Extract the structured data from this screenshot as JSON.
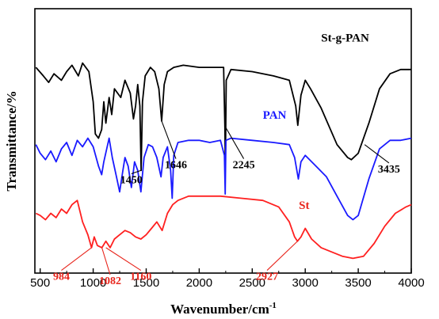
{
  "chart_data": {
    "type": "line",
    "xlabel": "Wavenumber/cm",
    "xlabel_sup": "-1",
    "ylabel": "Transmittance/%",
    "xlim": [
      450,
      4000
    ],
    "xticks": [
      500,
      1000,
      1500,
      2000,
      2500,
      3000,
      3500,
      4000
    ],
    "grid": false,
    "legend": "none",
    "series": [
      {
        "name": "St-g-PAN",
        "color": "#000000",
        "label_color": "#000000",
        "points": [
          [
            460,
            0.86
          ],
          [
            530,
            0.82
          ],
          [
            580,
            0.79
          ],
          [
            630,
            0.83
          ],
          [
            700,
            0.8
          ],
          [
            750,
            0.84
          ],
          [
            800,
            0.87
          ],
          [
            860,
            0.82
          ],
          [
            900,
            0.88
          ],
          [
            960,
            0.84
          ],
          [
            1000,
            0.7
          ],
          [
            1020,
            0.55
          ],
          [
            1050,
            0.53
          ],
          [
            1080,
            0.57
          ],
          [
            1100,
            0.7
          ],
          [
            1120,
            0.6
          ],
          [
            1150,
            0.72
          ],
          [
            1175,
            0.64
          ],
          [
            1200,
            0.76
          ],
          [
            1260,
            0.72
          ],
          [
            1300,
            0.8
          ],
          [
            1350,
            0.74
          ],
          [
            1380,
            0.62
          ],
          [
            1400,
            0.68
          ],
          [
            1420,
            0.78
          ],
          [
            1440,
            0.68
          ],
          [
            1452,
            0.38
          ],
          [
            1465,
            0.7
          ],
          [
            1490,
            0.82
          ],
          [
            1540,
            0.86
          ],
          [
            1580,
            0.84
          ],
          [
            1620,
            0.76
          ],
          [
            1646,
            0.61
          ],
          [
            1670,
            0.78
          ],
          [
            1700,
            0.84
          ],
          [
            1760,
            0.86
          ],
          [
            1850,
            0.87
          ],
          [
            2000,
            0.86
          ],
          [
            2150,
            0.86
          ],
          [
            2230,
            0.86
          ],
          [
            2242,
            0.58
          ],
          [
            2247,
            0.4
          ],
          [
            2255,
            0.8
          ],
          [
            2300,
            0.85
          ],
          [
            2500,
            0.84
          ],
          [
            2700,
            0.82
          ],
          [
            2850,
            0.8
          ],
          [
            2910,
            0.68
          ],
          [
            2930,
            0.59
          ],
          [
            2960,
            0.73
          ],
          [
            3000,
            0.8
          ],
          [
            3050,
            0.76
          ],
          [
            3150,
            0.67
          ],
          [
            3300,
            0.5
          ],
          [
            3400,
            0.44
          ],
          [
            3435,
            0.43
          ],
          [
            3500,
            0.46
          ],
          [
            3600,
            0.6
          ],
          [
            3700,
            0.76
          ],
          [
            3800,
            0.83
          ],
          [
            3900,
            0.85
          ],
          [
            4000,
            0.85
          ]
        ]
      },
      {
        "name": "PAN",
        "color": "#1a1aff",
        "label_color": "#1a1aff",
        "points": [
          [
            460,
            0.5
          ],
          [
            500,
            0.46
          ],
          [
            550,
            0.43
          ],
          [
            600,
            0.47
          ],
          [
            650,
            0.42
          ],
          [
            700,
            0.48
          ],
          [
            750,
            0.51
          ],
          [
            800,
            0.45
          ],
          [
            850,
            0.52
          ],
          [
            900,
            0.49
          ],
          [
            950,
            0.53
          ],
          [
            1000,
            0.49
          ],
          [
            1050,
            0.4
          ],
          [
            1080,
            0.36
          ],
          [
            1100,
            0.42
          ],
          [
            1150,
            0.53
          ],
          [
            1180,
            0.44
          ],
          [
            1220,
            0.35
          ],
          [
            1250,
            0.28
          ],
          [
            1280,
            0.38
          ],
          [
            1300,
            0.44
          ],
          [
            1330,
            0.4
          ],
          [
            1360,
            0.3
          ],
          [
            1390,
            0.42
          ],
          [
            1420,
            0.38
          ],
          [
            1450,
            0.28
          ],
          [
            1480,
            0.44
          ],
          [
            1520,
            0.5
          ],
          [
            1560,
            0.49
          ],
          [
            1600,
            0.44
          ],
          [
            1640,
            0.35
          ],
          [
            1660,
            0.44
          ],
          [
            1700,
            0.49
          ],
          [
            1730,
            0.38
          ],
          [
            1745,
            0.25
          ],
          [
            1760,
            0.45
          ],
          [
            1800,
            0.51
          ],
          [
            1900,
            0.52
          ],
          [
            2000,
            0.52
          ],
          [
            2100,
            0.51
          ],
          [
            2200,
            0.52
          ],
          [
            2238,
            0.45
          ],
          [
            2245,
            0.27
          ],
          [
            2252,
            0.52
          ],
          [
            2300,
            0.53
          ],
          [
            2500,
            0.52
          ],
          [
            2700,
            0.51
          ],
          [
            2850,
            0.5
          ],
          [
            2900,
            0.44
          ],
          [
            2935,
            0.34
          ],
          [
            2960,
            0.42
          ],
          [
            3000,
            0.45
          ],
          [
            3100,
            0.4
          ],
          [
            3200,
            0.35
          ],
          [
            3300,
            0.26
          ],
          [
            3400,
            0.17
          ],
          [
            3450,
            0.15
          ],
          [
            3500,
            0.17
          ],
          [
            3600,
            0.34
          ],
          [
            3700,
            0.48
          ],
          [
            3800,
            0.52
          ],
          [
            3900,
            0.52
          ],
          [
            4000,
            0.53
          ]
        ]
      },
      {
        "name": "St",
        "color": "#ff2020",
        "label_color": "#e8241b",
        "points": [
          [
            460,
            0.18
          ],
          [
            500,
            0.17
          ],
          [
            550,
            0.15
          ],
          [
            600,
            0.18
          ],
          [
            650,
            0.16
          ],
          [
            700,
            0.2
          ],
          [
            750,
            0.18
          ],
          [
            800,
            0.22
          ],
          [
            850,
            0.24
          ],
          [
            900,
            0.14
          ],
          [
            950,
            0.08
          ],
          [
            984,
            0.02
          ],
          [
            1010,
            0.07
          ],
          [
            1040,
            0.03
          ],
          [
            1082,
            0.02
          ],
          [
            1120,
            0.05
          ],
          [
            1160,
            0.02
          ],
          [
            1200,
            0.06
          ],
          [
            1250,
            0.08
          ],
          [
            1300,
            0.1
          ],
          [
            1350,
            0.09
          ],
          [
            1400,
            0.07
          ],
          [
            1450,
            0.06
          ],
          [
            1500,
            0.08
          ],
          [
            1550,
            0.11
          ],
          [
            1600,
            0.14
          ],
          [
            1650,
            0.1
          ],
          [
            1700,
            0.18
          ],
          [
            1750,
            0.22
          ],
          [
            1800,
            0.24
          ],
          [
            1900,
            0.26
          ],
          [
            2000,
            0.26
          ],
          [
            2100,
            0.26
          ],
          [
            2200,
            0.26
          ],
          [
            2400,
            0.25
          ],
          [
            2600,
            0.24
          ],
          [
            2750,
            0.21
          ],
          [
            2850,
            0.14
          ],
          [
            2900,
            0.07
          ],
          [
            2927,
            0.05
          ],
          [
            2960,
            0.07
          ],
          [
            3000,
            0.11
          ],
          [
            3060,
            0.06
          ],
          [
            3150,
            0.02
          ],
          [
            3250,
            0.0
          ],
          [
            3350,
            -0.02
          ],
          [
            3450,
            -0.03
          ],
          [
            3550,
            -0.02
          ],
          [
            3650,
            0.04
          ],
          [
            3750,
            0.12
          ],
          [
            3850,
            0.18
          ],
          [
            3950,
            0.21
          ],
          [
            4000,
            0.22
          ]
        ]
      }
    ],
    "series_labels": [
      {
        "series": 0,
        "x": 3150,
        "y": 0.98
      },
      {
        "series": 1,
        "x": 2600,
        "y": 0.62
      },
      {
        "series": 2,
        "x": 2940,
        "y": 0.2
      }
    ],
    "annotations": [
      {
        "label": "1450",
        "series": 0,
        "x": 1452,
        "y": 0.38,
        "label_x": 1360,
        "label_y": 0.32,
        "color": "#000000"
      },
      {
        "label": "1646",
        "series": 0,
        "x": 1646,
        "y": 0.61,
        "label_x": 1780,
        "label_y": 0.39,
        "color": "#000000"
      },
      {
        "label": "2245",
        "series": 0,
        "x": 2250,
        "y": 0.58,
        "label_x": 2420,
        "label_y": 0.39,
        "color": "#000000"
      },
      {
        "label": "3435",
        "series": 0,
        "x": 3560,
        "y": 0.5,
        "label_x": 3790,
        "label_y": 0.37,
        "color": "#000000"
      },
      {
        "label": "984",
        "series": 2,
        "x": 984,
        "y": 0.02,
        "label_x": 700,
        "label_y": -0.13,
        "color": "#e8241b"
      },
      {
        "label": "1082",
        "series": 2,
        "x": 1082,
        "y": 0.02,
        "label_x": 1160,
        "label_y": -0.15,
        "color": "#e8241b"
      },
      {
        "label": "1160",
        "series": 2,
        "x": 1120,
        "y": 0.02,
        "label_x": 1450,
        "label_y": -0.13,
        "color": "#e8241b"
      },
      {
        "label": "2927",
        "series": 2,
        "x": 2927,
        "y": 0.05,
        "label_x": 2640,
        "label_y": -0.13,
        "color": "#e8241b"
      }
    ]
  }
}
